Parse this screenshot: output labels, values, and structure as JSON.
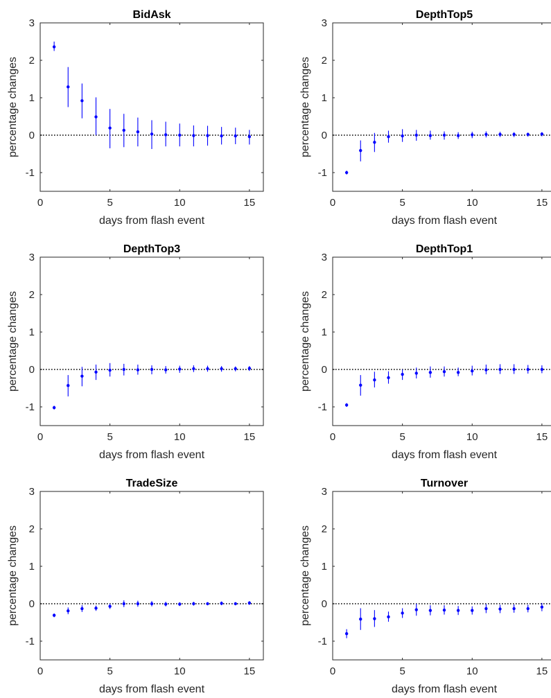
{
  "figure": {
    "xlabel": "days from flash event",
    "ylabel": "percentage changes"
  },
  "colors": {
    "marker": "#0000ff",
    "errorbar": "#0000ff",
    "zero_line": "#000000",
    "axes": "#262626"
  },
  "chart_data": [
    {
      "type": "scatter",
      "title": "BidAsk",
      "xlabel": "days from flash event",
      "ylabel": "percentage changes",
      "xlim": [
        0,
        16
      ],
      "ylim": [
        -1.5,
        3
      ],
      "xticks": [
        "0",
        "5",
        "10",
        "15"
      ],
      "yticks": [
        "-1",
        "0",
        "1",
        "2",
        "3"
      ],
      "zero_line": "dotted",
      "grid": false,
      "series": [
        {
          "x": [
            1,
            2,
            3,
            4,
            5,
            6,
            7,
            8,
            9,
            10,
            11,
            12,
            13,
            14,
            15
          ],
          "y": [
            2.36,
            1.29,
            0.92,
            0.49,
            0.19,
            0.13,
            0.09,
            0.03,
            0.01,
            0.0,
            -0.01,
            -0.01,
            -0.02,
            -0.02,
            -0.04
          ],
          "lower": [
            2.25,
            0.75,
            0.45,
            0.0,
            -0.35,
            -0.32,
            -0.3,
            -0.37,
            -0.3,
            -0.3,
            -0.3,
            -0.28,
            -0.25,
            -0.24,
            -0.25
          ],
          "upper": [
            2.5,
            1.82,
            1.38,
            1.01,
            0.7,
            0.57,
            0.47,
            0.4,
            0.36,
            0.31,
            0.26,
            0.25,
            0.22,
            0.2,
            0.14
          ]
        }
      ]
    },
    {
      "type": "scatter",
      "title": "DepthTop5",
      "xlabel": "days from flash event",
      "ylabel": "percentage changes",
      "xlim": [
        0,
        16
      ],
      "ylim": [
        -1.5,
        3
      ],
      "xticks": [
        "0",
        "5",
        "10",
        "15"
      ],
      "yticks": [
        "-1",
        "0",
        "1",
        "2",
        "3"
      ],
      "zero_line": "dotted",
      "grid": false,
      "series": [
        {
          "x": [
            1,
            2,
            3,
            4,
            5,
            6,
            7,
            8,
            9,
            10,
            11,
            12,
            13,
            14,
            15
          ],
          "y": [
            -1.0,
            -0.41,
            -0.19,
            -0.04,
            -0.02,
            0.0,
            -0.01,
            0.0,
            -0.01,
            0.01,
            0.02,
            0.02,
            0.02,
            0.02,
            0.03
          ],
          "lower": [
            -1.05,
            -0.7,
            -0.45,
            -0.2,
            -0.18,
            -0.15,
            -0.12,
            -0.12,
            -0.1,
            -0.08,
            -0.06,
            -0.05,
            -0.05,
            -0.04,
            -0.03
          ],
          "upper": [
            -0.95,
            -0.14,
            0.06,
            0.12,
            0.16,
            0.14,
            0.12,
            0.1,
            0.08,
            0.09,
            0.1,
            0.09,
            0.08,
            0.07,
            0.08
          ]
        }
      ]
    },
    {
      "type": "scatter",
      "title": "DepthTop3",
      "xlabel": "days from flash event",
      "ylabel": "percentage changes",
      "xlim": [
        0,
        16
      ],
      "ylim": [
        -1.5,
        3
      ],
      "xticks": [
        "0",
        "5",
        "10",
        "15"
      ],
      "yticks": [
        "-1",
        "0",
        "1",
        "2",
        "3"
      ],
      "zero_line": "dotted",
      "grid": false,
      "series": [
        {
          "x": [
            1,
            2,
            3,
            4,
            5,
            6,
            7,
            8,
            9,
            10,
            11,
            12,
            13,
            14,
            15
          ],
          "y": [
            -1.02,
            -0.43,
            -0.18,
            -0.07,
            -0.02,
            0.0,
            -0.01,
            0.0,
            -0.01,
            0.01,
            0.02,
            0.02,
            0.02,
            0.02,
            0.03
          ],
          "lower": [
            -1.07,
            -0.72,
            -0.45,
            -0.28,
            -0.19,
            -0.16,
            -0.14,
            -0.13,
            -0.11,
            -0.09,
            -0.07,
            -0.06,
            -0.06,
            -0.05,
            -0.04
          ],
          "upper": [
            -0.97,
            -0.15,
            0.07,
            0.13,
            0.17,
            0.15,
            0.13,
            0.11,
            0.09,
            0.1,
            0.11,
            0.1,
            0.09,
            0.08,
            0.09
          ]
        }
      ]
    },
    {
      "type": "scatter",
      "title": "DepthTop1",
      "xlabel": "days from flash event",
      "ylabel": "percentage changes",
      "xlim": [
        0,
        16
      ],
      "ylim": [
        -1.5,
        3
      ],
      "xticks": [
        "0",
        "5",
        "10",
        "15"
      ],
      "yticks": [
        "-1",
        "0",
        "1",
        "2",
        "3"
      ],
      "zero_line": "dotted",
      "grid": false,
      "series": [
        {
          "x": [
            1,
            2,
            3,
            4,
            5,
            6,
            7,
            8,
            9,
            10,
            11,
            12,
            13,
            14,
            15
          ],
          "y": [
            -0.95,
            -0.42,
            -0.28,
            -0.22,
            -0.13,
            -0.1,
            -0.08,
            -0.06,
            -0.08,
            -0.04,
            -0.01,
            0.0,
            0.0,
            0.0,
            0.0
          ],
          "lower": [
            -1.0,
            -0.7,
            -0.48,
            -0.38,
            -0.28,
            -0.24,
            -0.22,
            -0.19,
            -0.18,
            -0.16,
            -0.13,
            -0.12,
            -0.12,
            -0.11,
            -0.1
          ],
          "upper": [
            -0.9,
            -0.15,
            -0.06,
            -0.05,
            0.0,
            0.05,
            0.08,
            0.08,
            0.05,
            0.1,
            0.13,
            0.14,
            0.14,
            0.12,
            0.11
          ]
        }
      ]
    },
    {
      "type": "scatter",
      "title": "TradeSize",
      "xlabel": "days from flash event",
      "ylabel": "percentage changes",
      "xlim": [
        0,
        16
      ],
      "ylim": [
        -1.5,
        3
      ],
      "xticks": [
        "0",
        "5",
        "10",
        "15"
      ],
      "yticks": [
        "-1",
        "0",
        "1",
        "2",
        "3"
      ],
      "zero_line": "dotted",
      "grid": false,
      "series": [
        {
          "x": [
            1,
            2,
            3,
            4,
            5,
            6,
            7,
            8,
            9,
            10,
            11,
            12,
            13,
            14,
            15
          ],
          "y": [
            -0.31,
            -0.19,
            -0.13,
            -0.12,
            -0.07,
            0.0,
            0.0,
            0.0,
            -0.01,
            -0.01,
            0.0,
            0.0,
            0.01,
            0.0,
            0.02
          ],
          "lower": [
            -0.36,
            -0.28,
            -0.22,
            -0.19,
            -0.14,
            -0.09,
            -0.08,
            -0.07,
            -0.07,
            -0.06,
            -0.05,
            -0.04,
            -0.04,
            -0.04,
            -0.03
          ],
          "upper": [
            -0.26,
            -0.1,
            -0.04,
            -0.05,
            0.0,
            0.09,
            0.08,
            0.07,
            0.05,
            0.04,
            0.05,
            0.04,
            0.06,
            0.04,
            0.07
          ]
        }
      ]
    },
    {
      "type": "scatter",
      "title": "Turnover",
      "xlabel": "days from flash event",
      "ylabel": "percentage changes",
      "xlim": [
        0,
        16
      ],
      "ylim": [
        -1.5,
        3
      ],
      "xticks": [
        "0",
        "5",
        "10",
        "15"
      ],
      "yticks": [
        "-1",
        "0",
        "1",
        "2",
        "3"
      ],
      "zero_line": "dotted",
      "grid": false,
      "series": [
        {
          "x": [
            1,
            2,
            3,
            4,
            5,
            6,
            7,
            8,
            9,
            10,
            11,
            12,
            13,
            14,
            15
          ],
          "y": [
            -0.8,
            -0.41,
            -0.4,
            -0.35,
            -0.25,
            -0.16,
            -0.18,
            -0.17,
            -0.18,
            -0.18,
            -0.13,
            -0.14,
            -0.13,
            -0.13,
            -0.09
          ],
          "lower": [
            -0.92,
            -0.7,
            -0.62,
            -0.48,
            -0.38,
            -0.32,
            -0.31,
            -0.29,
            -0.3,
            -0.29,
            -0.25,
            -0.25,
            -0.24,
            -0.23,
            -0.2
          ],
          "upper": [
            -0.68,
            -0.12,
            -0.17,
            -0.21,
            -0.12,
            0.0,
            -0.04,
            -0.04,
            -0.06,
            -0.07,
            -0.01,
            -0.03,
            -0.02,
            -0.03,
            0.02
          ]
        }
      ]
    }
  ]
}
